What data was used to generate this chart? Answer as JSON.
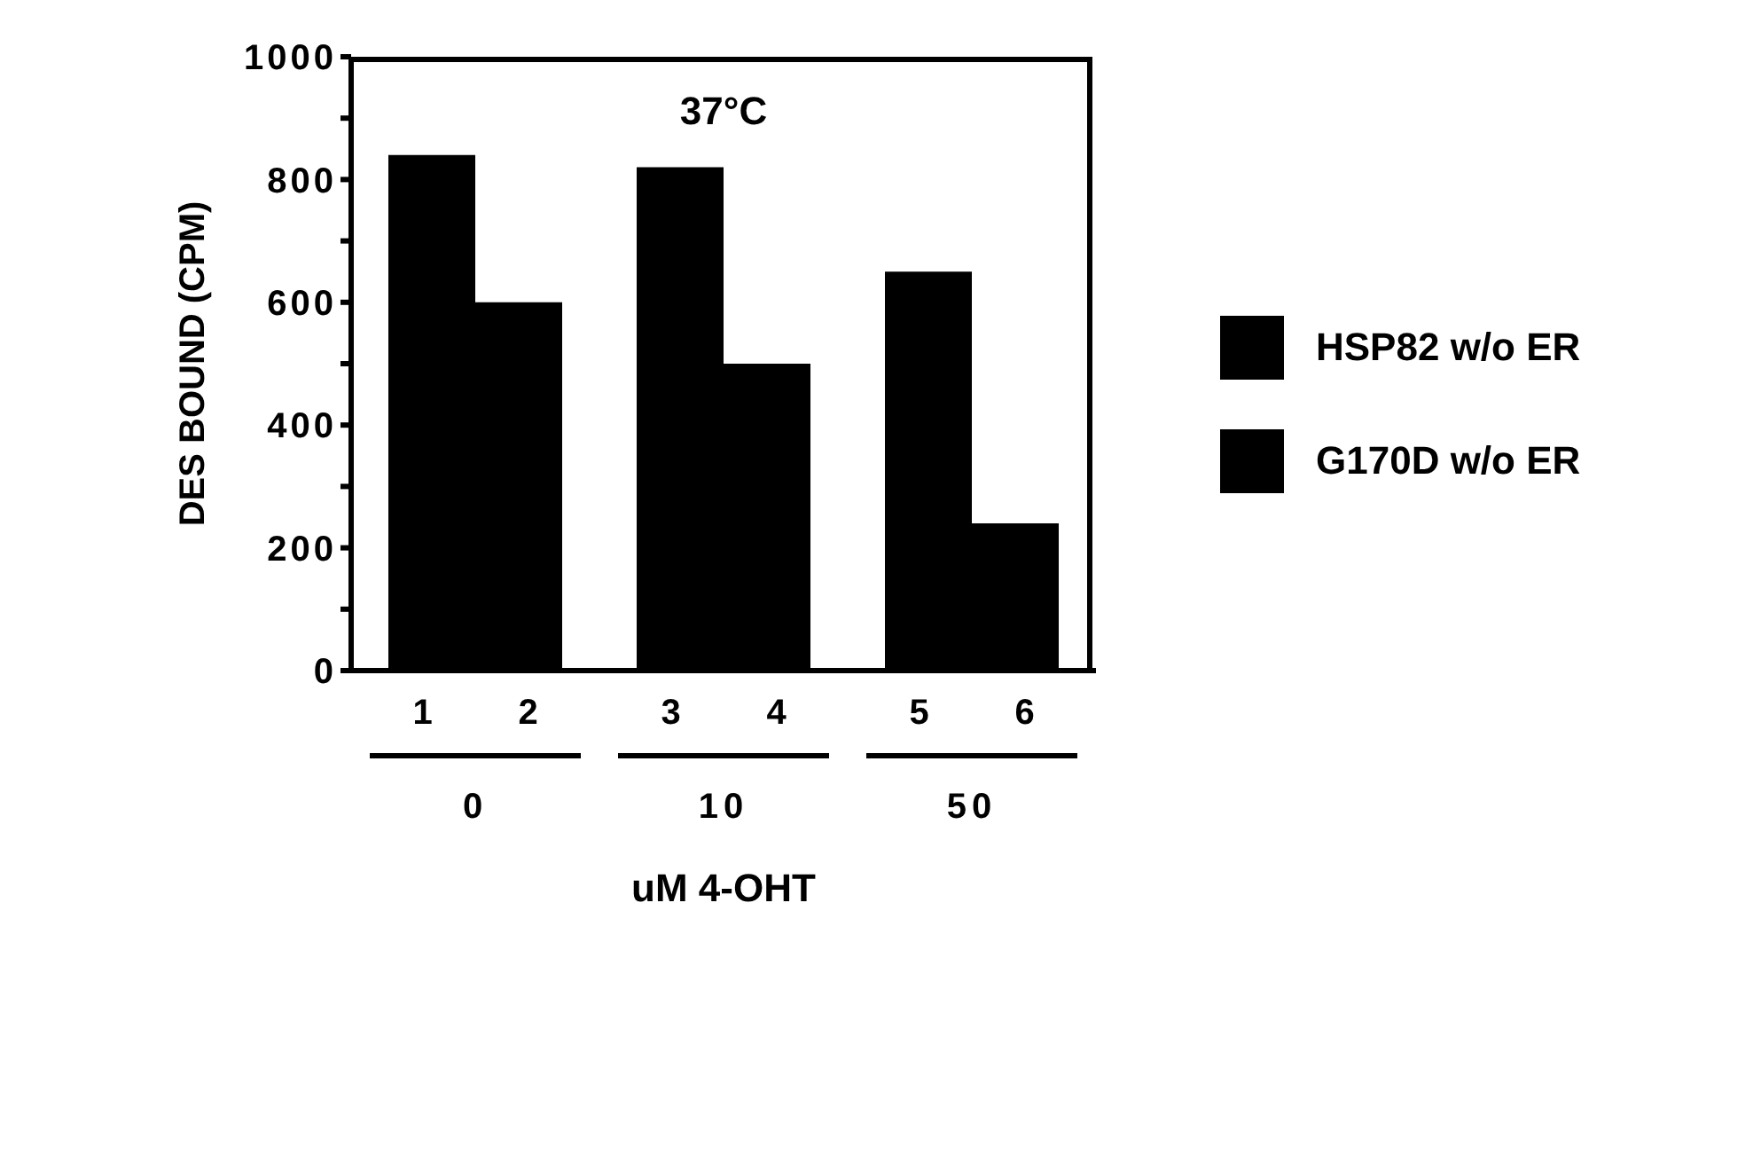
{
  "chart_data": {
    "type": "bar",
    "title": "37°C",
    "xlabel": "uM 4-OHT",
    "ylabel": "DES BOUND (CPM)",
    "categories": [
      "0",
      "10",
      "50"
    ],
    "series": [
      {
        "name": "HSP82 w/o ER",
        "color": "#000000",
        "values": [
          840,
          820,
          650
        ]
      },
      {
        "name": "G170D w/o ER",
        "color": "#000000",
        "values": [
          600,
          500,
          240
        ]
      }
    ],
    "ylim": [
      0,
      1000
    ],
    "yticks": [
      0,
      {
        "value": 100,
        "label": null
      },
      200,
      {
        "value": 300,
        "label": null
      },
      400,
      {
        "value": 500,
        "label": null
      },
      600,
      {
        "value": 700,
        "label": null
      },
      800,
      {
        "value": 900,
        "label": null
      },
      1000
    ],
    "annotations": [
      "1",
      "2",
      "3",
      "4",
      "5",
      "6"
    ],
    "grid": false,
    "legend": "right"
  }
}
